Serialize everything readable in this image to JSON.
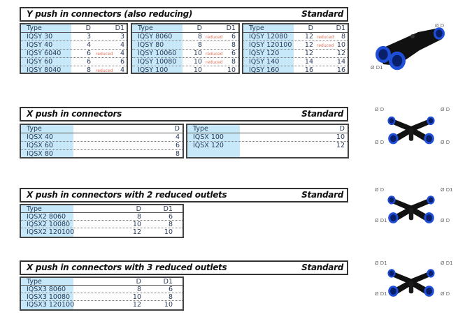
{
  "sections": [
    {
      "title": "Y push in connectors (also reducing)",
      "standard": "Standard",
      "tables": [
        {
          "headers": [
            "Type",
            "D",
            "D1"
          ],
          "rows": [
            [
              "IQSY 30",
              "3",
              "",
              "3"
            ],
            [
              "IQSY 40",
              "4",
              "",
              "4"
            ],
            [
              "IQSY 6040",
              "6",
              "reduced",
              "4"
            ],
            [
              "IQSY 60",
              "6",
              "",
              "6"
            ],
            [
              "IQSY 8040",
              "8",
              "reduced",
              "4"
            ]
          ]
        },
        {
          "headers": [
            "Type",
            "D",
            "D1"
          ],
          "rows": [
            [
              "IQSY 8060",
              "8",
              "reduced",
              "6"
            ],
            [
              "IQSY 80",
              "8",
              "",
              "8"
            ],
            [
              "IQSY 10060",
              "10",
              "reduced",
              "6"
            ],
            [
              "IQSY 10080",
              "10",
              "reduced",
              "8"
            ],
            [
              "IQSY 100",
              "10",
              "",
              "10"
            ]
          ]
        },
        {
          "headers": [
            "Type",
            "D",
            "D1"
          ],
          "rows": [
            [
              "IQSY 12080",
              "12",
              "reduced",
              "8"
            ],
            [
              "IQSY 120100",
              "12",
              "reduced",
              "10"
            ],
            [
              "IQSY 120",
              "12",
              "",
              "12"
            ],
            [
              "IQSY 140",
              "14",
              "",
              "14"
            ],
            [
              "IQSY 160",
              "16",
              "",
              "16"
            ]
          ]
        }
      ],
      "labels": [
        "Ø D",
        "Ø D1"
      ]
    },
    {
      "title": "X push in connectors",
      "standard": "Standard",
      "tables": [
        {
          "headers": [
            "Type",
            "D"
          ],
          "rows": [
            [
              "IQSX 40",
              "4"
            ],
            [
              "IQSX 60",
              "6"
            ],
            [
              "IQSX 80",
              "8"
            ]
          ]
        },
        {
          "headers": [
            "Type",
            "D"
          ],
          "rows": [
            [
              "IQSX 100",
              "10"
            ],
            [
              "IQSX 120",
              "12"
            ]
          ]
        }
      ],
      "labels": [
        "Ø D",
        "Ø D",
        "Ø D",
        "Ø D"
      ]
    },
    {
      "title": "X push in connectors with 2 reduced outlets",
      "standard": "Standard",
      "tables": [
        {
          "headers": [
            "Type",
            "D",
            "D1"
          ],
          "rows": [
            [
              "IQSX2 8060",
              "8",
              "6"
            ],
            [
              "IQSX2 10080",
              "10",
              "8"
            ],
            [
              "IQSX2 120100",
              "12",
              "10"
            ]
          ]
        }
      ],
      "labels": [
        "Ø D",
        "Ø D1",
        "Ø D1",
        "Ø D"
      ]
    },
    {
      "title": "X push in connectors with 3 reduced outlets",
      "standard": "Standard",
      "tables": [
        {
          "headers": [
            "Type",
            "D",
            "D1"
          ],
          "rows": [
            [
              "IQSX3 8060",
              "8",
              "6"
            ],
            [
              "IQSX3 10080",
              "10",
              "8"
            ],
            [
              "IQSX3 120100",
              "12",
              "10"
            ]
          ]
        }
      ],
      "labels": [
        "Ø D1",
        "Ø D1",
        "Ø D1",
        "Ø D"
      ]
    }
  ],
  "colors": {
    "type_band": "#c6e8f8",
    "reduced": "#e0705a",
    "fitting_blue": "#1f4fd8"
  }
}
